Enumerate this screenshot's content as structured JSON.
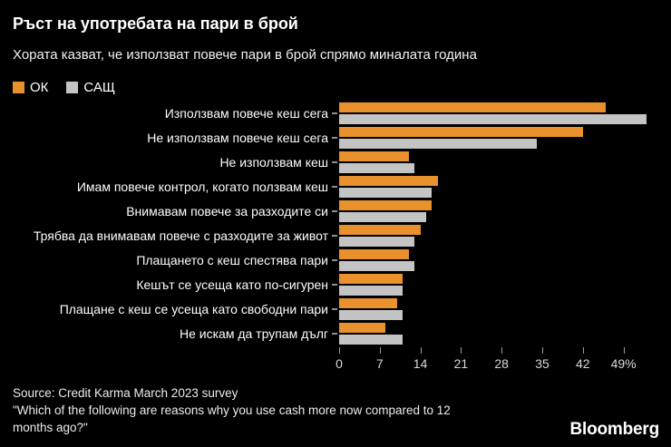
{
  "header": {
    "title": "Ръст на употребата на пари в брой",
    "subtitle": "Хората казват, че използват повече пари в брой спрямо миналата година"
  },
  "legend": [
    {
      "label": "ОК",
      "color": "#E8912D"
    },
    {
      "label": "САЩ",
      "color": "#C4C4C4"
    }
  ],
  "chart_data": {
    "type": "bar",
    "orientation": "horizontal",
    "title": "Ръст на употребата на пари в брой",
    "subtitle": "Хората казват, че използват повече пари в брой спрямо миналата година",
    "categories": [
      "Използвам повече кеш сега",
      "Не използвам повече кеш сега",
      "Не използвам кеш",
      "Имам повече контрол, когато ползвам кеш",
      "Внимавам повече за разходите си",
      "Трябва да внимавам повече с разходите за живот",
      "Плащането с кеш спестява пари",
      "Кешът се усеща като по-сигурен",
      "Плащане с кеш се усеща като свободни пари",
      "Не искам да трупам дълг"
    ],
    "series": [
      {
        "name": "ОК",
        "color": "#E8912D",
        "values": [
          46,
          42,
          12,
          17,
          16,
          14,
          12,
          11,
          10,
          8
        ]
      },
      {
        "name": "САЩ",
        "color": "#C4C4C4",
        "values": [
          53,
          34,
          13,
          16,
          15,
          13,
          13,
          11,
          11,
          11
        ]
      }
    ],
    "x_axis": {
      "tick_values": [
        0,
        7,
        14,
        21,
        28,
        35,
        42,
        49
      ],
      "tick_labels": [
        "0",
        "7",
        "14",
        "21",
        "28",
        "35",
        "42",
        "49%"
      ],
      "range": [
        0,
        55
      ],
      "unit": "%"
    },
    "grid": false,
    "legend_position": "top-left",
    "background": "#000000"
  },
  "footer": {
    "source_line1": "Source: Credit Karma March 2023 survey",
    "source_line2": "\"Which of the following are reasons why you use cash more now compared to 12",
    "source_line3": "months ago?\"",
    "brand": "Bloomberg"
  }
}
